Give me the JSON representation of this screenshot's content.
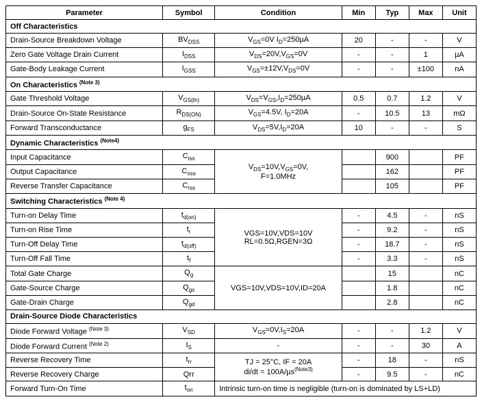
{
  "headers": {
    "parameter": "Parameter",
    "symbol": "Symbol",
    "condition": "Condition",
    "min": "Min",
    "typ": "Typ",
    "max": "Max",
    "unit": "Unit"
  },
  "sections": {
    "off": "Off Characteristics",
    "on_prefix": "On Characteristics",
    "on_note": "(Note 3)",
    "dyn_prefix": "Dynamic Characteristics",
    "dyn_note": "(Note4)",
    "sw_prefix": "Switching Characteristics",
    "sw_note": "(Note 4)",
    "diode": "Drain-Source Diode Characteristics"
  },
  "off": {
    "bvdss": {
      "param": "Drain-Source Breakdown Voltage",
      "cond_pre": "V",
      "cond_sub1": "GS",
      "cond_mid": "=0V I",
      "cond_sub2": "D",
      "cond_post": "=250µA",
      "min": "20",
      "typ": "-",
      "max": "-",
      "unit": "V"
    },
    "idss": {
      "param": "Zero Gate Voltage Drain Current",
      "cond_pre": "V",
      "cond_sub1": "DS",
      "cond_mid": "=20V,V",
      "cond_sub2": "GS",
      "cond_post": "=0V",
      "min": "-",
      "typ": "-",
      "max": "1",
      "unit": "µA"
    },
    "igss": {
      "param": "Gate-Body Leakage Current",
      "cond_pre": "V",
      "cond_sub1": "GS",
      "cond_mid": "=±12V,V",
      "cond_sub2": "DS",
      "cond_post": "=0V",
      "min": "-",
      "typ": "-",
      "max": "±100",
      "unit": "nA"
    }
  },
  "on": {
    "vgsth": {
      "param": "Gate Threshold Voltage",
      "cond_pre": "V",
      "cond_sub1": "DS",
      "cond_mid": "=V",
      "cond_sub2": "GS",
      "cond_mid2": ",I",
      "cond_sub3": "D",
      "cond_post": "=250µA",
      "min": "0.5",
      "typ": "0.7",
      "max": "1.2",
      "unit": "V"
    },
    "rdson": {
      "param": "Drain-Source On-State Resistance",
      "cond_pre": "V",
      "cond_sub1": "GS",
      "cond_mid": "=4.5V, I",
      "cond_sub2": "D",
      "cond_post": "=20A",
      "min": "-",
      "typ": "10.5",
      "max": "13",
      "unit": "mΩ"
    },
    "gfs": {
      "param": "Forward Transconductance",
      "cond_pre": "V",
      "cond_sub1": "DS",
      "cond_mid": "=5V,I",
      "cond_sub2": "D",
      "cond_post": "=20A",
      "min": "10",
      "typ": "-",
      "max": "-",
      "unit": "S"
    }
  },
  "dyn": {
    "ciss": {
      "param": "Input Capacitance",
      "typ": "900",
      "unit": "PF"
    },
    "coss": {
      "param": "Output Capacitance",
      "typ": "162",
      "unit": "PF"
    },
    "crss": {
      "param": "Reverse Transfer Capacitance",
      "typ": "105",
      "unit": "PF"
    },
    "cond_line1_pre": "V",
    "cond_line1_sub1": "DS",
    "cond_line1_mid": "=10V,V",
    "cond_line1_sub2": "GS",
    "cond_line1_post": "=0V,",
    "cond_line2": "F=1.0MHz"
  },
  "sw": {
    "tdon": {
      "param": "Turn-on Delay Time",
      "min": "-",
      "typ": "4.5",
      "max": "-",
      "unit": "nS"
    },
    "tr": {
      "param": "Turn-on Rise Time",
      "min": "-",
      "typ": "9.2",
      "max": "-",
      "unit": "nS"
    },
    "tdoff": {
      "param": "Turn-Off Delay Time",
      "min": "-",
      "typ": "18.7",
      "max": "-",
      "unit": "nS"
    },
    "tf": {
      "param": "Turn-Off Fall Time",
      "min": "-",
      "typ": "3.3",
      "max": "-",
      "unit": "nS"
    },
    "cond_line1": "VGS=10V,VDS=10V",
    "cond_line2": "RL=0.5Ω,RGEN=3Ω",
    "qg": {
      "param": "Total Gate Charge",
      "typ": "15",
      "unit": "nC"
    },
    "qgs": {
      "param": "Gate-Source Charge",
      "typ": "1.8",
      "unit": "nC"
    },
    "qgd": {
      "param": "Gate-Drain Charge",
      "typ": "2.8",
      "unit": "nC"
    },
    "qcond": "VGS=10V,VDS=10V,ID=20A"
  },
  "diode": {
    "vsd": {
      "param_pre": "Diode Forward Voltage",
      "param_note": "(Note 3)",
      "cond_pre": "V",
      "cond_sub1": "GS",
      "cond_mid": "=0V,I",
      "cond_sub2": "S",
      "cond_post": "=20A",
      "min": "-",
      "typ": "-",
      "max": "1.2",
      "unit": "V"
    },
    "is": {
      "param_pre": "Diode Forward Current",
      "param_note": "(Note 2)",
      "cond": "-",
      "min": "-",
      "typ": "-",
      "max": "30",
      "unit": "A"
    },
    "trr": {
      "param": "Reverse Recovery Time",
      "min": "-",
      "typ": "18",
      "max": "-",
      "unit": "nS"
    },
    "qrr": {
      "param": "Reverse Recovery Charge",
      "min": "-",
      "typ": "9.5",
      "max": "-",
      "unit": "nC"
    },
    "rcond_line1": "TJ = 25°C, IF = 20A",
    "rcond_line2_pre": "di/dt = 100A/µs",
    "rcond_line2_note": "(Note3)",
    "ton": {
      "param": "Forward Turn-On Time",
      "cond": "Intrinsic turn-on time is negligible (turn-on is dominated by LS+LD)"
    }
  },
  "symbols": {
    "bvdss_pre": "BV",
    "bvdss_sub": "DSS",
    "idss_pre": "I",
    "idss_sub": "DSS",
    "igss_pre": "I",
    "igss_sub": "GSS",
    "vgsth_pre": "V",
    "vgsth_sub": "GS(th)",
    "rdson_pre": "R",
    "rdson_sub": "DS(ON)",
    "gfs_pre": "g",
    "gfs_sub": "FS",
    "ciss_pre": "C",
    "ciss_sub": "iss",
    "coss_pre": "C",
    "coss_sub": "oss",
    "crss_pre": "C",
    "crss_sub": "rss",
    "tdon_pre": "t",
    "tdon_sub": "d(on)",
    "tr_pre": "t",
    "tr_sub": "r",
    "tdoff_pre": "t",
    "tdoff_sub": "d(off)",
    "tf_pre": "t",
    "tf_sub": "f",
    "qg_pre": "Q",
    "qg_sub": "g",
    "qgs_pre": "Q",
    "qgs_sub": "gs",
    "qgd_pre": "Q",
    "qgd_sub": "gd",
    "vsd_pre": "V",
    "vsd_sub": "SD",
    "is_pre": "I",
    "is_sub": "S",
    "trr_pre": "t",
    "trr_sub": "rr",
    "qrr": "Qrr",
    "ton_pre": "t",
    "ton_sub": "on"
  }
}
